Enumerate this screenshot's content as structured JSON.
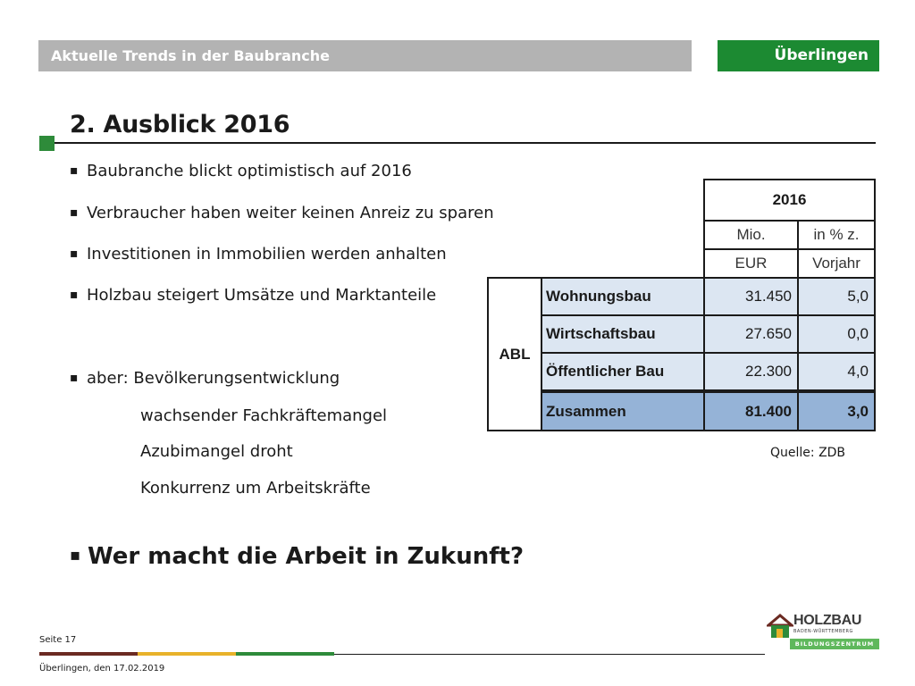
{
  "header": {
    "title": "Aktuelle Trends in der Baubranche",
    "location": "Überlingen"
  },
  "slide": {
    "title": "2. Ausblick 2016",
    "bullets": [
      "Baubranche blickt optimistisch auf 2016",
      "Verbraucher haben weiter keinen Anreiz zu sparen",
      "Investitionen in Immobilien werden anhalten",
      "Holzbau steigert Umsätze und Marktanteile",
      "aber: Bevölkerungsentwicklung"
    ],
    "sub_points": [
      "wachsender Fachkräftemangel",
      "Azubimangel droht",
      "Konkurrenz um Arbeitskräfte"
    ],
    "question": "Wer macht die Arbeit in Zukunft?",
    "bullet_mark": "▪"
  },
  "table": {
    "year": "2016",
    "col1_line1": "Mio.",
    "col1_line2": "EUR",
    "col2_line1": "in % z.",
    "col2_line2": "Vorjahr",
    "group": "ABL",
    "rows": [
      {
        "label": "Wohnungsbau",
        "mio": "31.450",
        "pct": "5,0"
      },
      {
        "label": "Wirtschaftsbau",
        "mio": "27.650",
        "pct": "0,0"
      },
      {
        "label": "Öffentlicher Bau",
        "mio": "22.300",
        "pct": "4,0"
      }
    ],
    "total": {
      "label": "Zusammen",
      "mio": "81.400",
      "pct": "3,0"
    },
    "source": "Quelle: ZDB"
  },
  "footer": {
    "page": "Seite 17",
    "date": "Überlingen, den 17.02.2019",
    "stripe_colors": [
      "#6b2a22",
      "#e8b22a",
      "#2e8b3a"
    ]
  },
  "logo": {
    "name": "HOLZBAU",
    "sub": "BADEN-WÜRTTEMBERG",
    "band": "BILDUNGSZENTRUM",
    "accent": "#5fb85c"
  }
}
